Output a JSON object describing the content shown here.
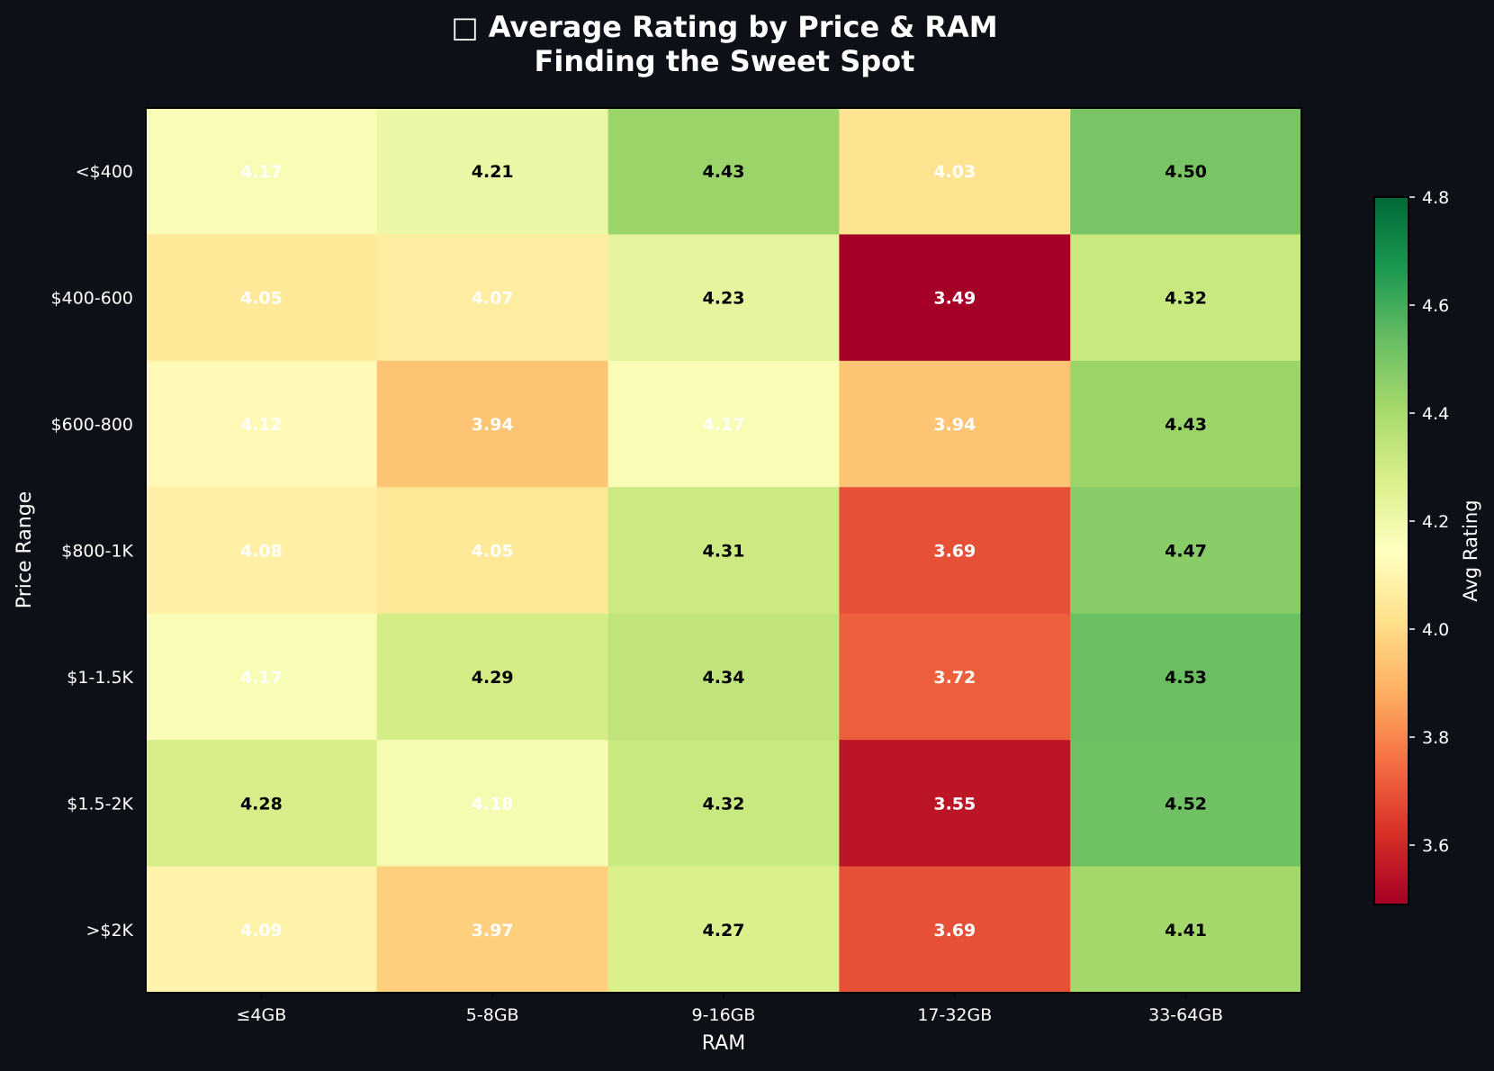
{
  "chart_data": {
    "type": "heatmap",
    "title_line1": "□ Average Rating by Price & RAM",
    "title_line2": "Finding the Sweet Spot",
    "xlabel": "RAM",
    "ylabel": "Price Range",
    "x_categories": [
      "≤4GB",
      "5-8GB",
      "9-16GB",
      "17-32GB",
      "33-64GB"
    ],
    "y_categories": [
      "<$400",
      "$400-600",
      "$600-800",
      "$800-1K",
      "$1-1.5K",
      "$1.5-2K",
      ">$2K"
    ],
    "values": [
      [
        4.17,
        4.21,
        4.43,
        4.03,
        4.5
      ],
      [
        4.05,
        4.07,
        4.23,
        3.49,
        4.32
      ],
      [
        4.12,
        3.94,
        4.17,
        3.94,
        4.43
      ],
      [
        4.08,
        4.05,
        4.31,
        3.69,
        4.47
      ],
      [
        4.17,
        4.29,
        4.34,
        3.72,
        4.53
      ],
      [
        4.28,
        4.18,
        4.32,
        3.55,
        4.52
      ],
      [
        4.09,
        3.97,
        4.27,
        3.69,
        4.41
      ]
    ],
    "colormap": "RdYlGn",
    "colorbar": {
      "label": "Avg Rating",
      "range": [
        3.49,
        4.8
      ],
      "ticks": [
        "3.6",
        "3.8",
        "4.0",
        "4.2",
        "4.4",
        "4.6",
        "4.8"
      ]
    },
    "colors": {
      "background": "#0d1017",
      "text": "#ffffff"
    }
  }
}
